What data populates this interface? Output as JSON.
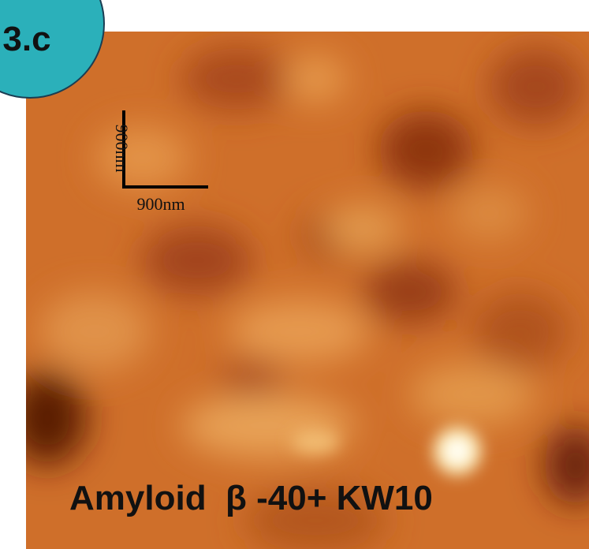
{
  "badge": {
    "label": "3.c"
  },
  "scale_bar": {
    "vertical_label": "900nm",
    "horizontal_label": "900nm"
  },
  "caption": "Amyloid  β -40+ KW10"
}
